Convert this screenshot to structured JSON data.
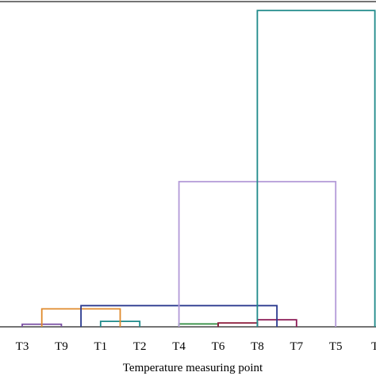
{
  "chart_data": {
    "type": "dendrogram",
    "xlabel": "Temperature measuring point",
    "leaves": [
      "T3",
      "T9",
      "T1",
      "T2",
      "T4",
      "T6",
      "T8",
      "T7",
      "T5",
      "T"
    ],
    "y_range": [
      0,
      100
    ],
    "grid": false,
    "links": [
      {
        "left": 0,
        "right": 1,
        "height": 0.8,
        "color": "#7a4fa3"
      },
      {
        "left": 2,
        "right": 3,
        "height": 1.7,
        "color": "#1e8a8a"
      },
      {
        "left": 4,
        "right": 5,
        "height": 0.9,
        "color": "#2e8b3e"
      },
      {
        "left": 5,
        "right": 6,
        "height": 1.2,
        "color": "#8b1a3a"
      },
      {
        "left": 6,
        "right": 7,
        "height": 2.2,
        "color": "#8b1a55"
      },
      {
        "left": 0.5,
        "right": 2.5,
        "height": 5.6,
        "color": "#e08a2c"
      },
      {
        "left": 1.5,
        "right": 6.5,
        "height": 6.6,
        "color": "#2b3a8f"
      },
      {
        "left": 4,
        "right": 8,
        "height": 45.3,
        "color": "#b39ad8"
      },
      {
        "left": 6,
        "right": 9,
        "height": 98.7,
        "color": "#1e8a8a"
      }
    ]
  }
}
